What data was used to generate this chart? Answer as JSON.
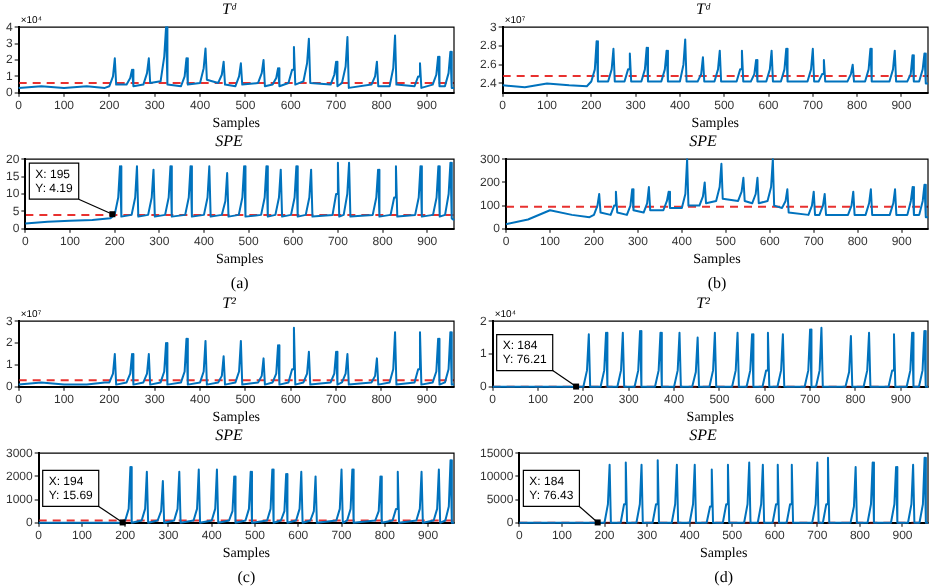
{
  "chart_data": [
    {
      "type": "line",
      "title": "Tᵈ",
      "xlabel": "Samples",
      "annotations": [
        "×10⁴"
      ],
      "xlim": [
        0,
        960
      ],
      "xticks": [
        0,
        100,
        200,
        300,
        400,
        500,
        600,
        700,
        800,
        900
      ],
      "ylim": [
        0,
        4
      ],
      "yticks": [
        0,
        1,
        2,
        3,
        4
      ],
      "x": [
        0,
        50,
        100,
        150,
        190,
        200,
        208,
        212,
        215,
        238,
        246,
        250,
        253,
        275,
        283,
        287,
        290,
        313,
        321,
        325,
        328,
        358,
        366,
        370,
        373,
        400,
        408,
        412,
        415,
        440,
        448,
        452,
        455,
        478,
        486,
        490,
        493,
        528,
        536,
        540,
        543,
        560,
        568,
        572,
        575,
        595,
        603,
        607,
        610,
        628,
        636,
        640,
        643,
        688,
        696,
        700,
        703,
        713,
        721,
        725,
        728,
        778,
        786,
        790,
        793,
        818,
        826,
        830,
        833,
        873,
        881,
        885,
        888,
        913,
        921,
        925,
        928,
        940,
        948,
        952,
        955,
        960
      ],
      "series": [
        {
          "color": "#0072bd",
          "values": [
            0.3,
            0.4,
            0.3,
            0.4,
            0.3,
            0.4,
            1.0,
            2.1,
            0.5,
            0.5,
            0.9,
            1.4,
            0.4,
            0.5,
            1.2,
            2.1,
            0.6,
            0.7,
            2.2,
            4.0,
            0.5,
            0.4,
            1.0,
            2.1,
            0.5,
            0.6,
            1.5,
            2.7,
            0.8,
            0.6,
            1.1,
            1.9,
            0.5,
            0.4,
            1.0,
            1.8,
            0.5,
            0.6,
            1.2,
            2.0,
            0.4,
            0.5,
            0.9,
            1.5,
            0.4,
            0.6,
            1.4,
            2.8,
            0.5,
            0.7,
            1.8,
            3.3,
            0.6,
            0.5,
            1.1,
            1.9,
            0.4,
            0.6,
            1.6,
            3.4,
            0.3,
            0.5,
            1.0,
            1.9,
            0.4,
            0.4,
            1.5,
            3.5,
            0.5,
            0.4,
            1.0,
            1.8,
            0.3,
            0.5,
            1.1,
            2.2,
            0.4,
            0.4,
            1.2,
            2.5,
            0.3,
            0.3
          ]
        }
      ],
      "ref_lines": [
        {
          "axis": "y",
          "value": 0.6,
          "color": "#e8312f",
          "line_style": "dashed"
        }
      ]
    },
    {
      "type": "line",
      "title": "SPE",
      "xlabel": "Samples",
      "annotations": [
        {
          "text": "X: 195\nY: 4.19",
          "x": 195,
          "y": 4.19
        },
        "(a)"
      ],
      "xlim": [
        0,
        960
      ],
      "xticks": [
        0,
        100,
        200,
        300,
        400,
        500,
        600,
        700,
        800,
        900
      ],
      "ylim": [
        0,
        20
      ],
      "yticks": [
        0,
        5,
        10,
        15,
        20
      ],
      "x": [
        0,
        50,
        100,
        150,
        190,
        200,
        208,
        212,
        215,
        238,
        246,
        250,
        253,
        275,
        283,
        287,
        290,
        313,
        321,
        325,
        328,
        358,
        366,
        370,
        373,
        400,
        408,
        412,
        415,
        440,
        448,
        452,
        455,
        478,
        486,
        490,
        493,
        528,
        536,
        540,
        543,
        560,
        568,
        572,
        575,
        595,
        603,
        607,
        610,
        628,
        636,
        640,
        643,
        688,
        696,
        700,
        703,
        713,
        721,
        725,
        728,
        778,
        786,
        790,
        793,
        818,
        826,
        830,
        833,
        873,
        881,
        885,
        888,
        913,
        921,
        925,
        928,
        940,
        948,
        952,
        955,
        960
      ],
      "series": [
        {
          "color": "#0072bd",
          "values": [
            1.5,
            2,
            2.3,
            2.5,
            3,
            4,
            9,
            18,
            3.5,
            4,
            9,
            18,
            3.5,
            4,
            9,
            17,
            3.5,
            4,
            9,
            18,
            3.5,
            4,
            9,
            18,
            3.5,
            4,
            9,
            18,
            3.5,
            4,
            8,
            16,
            3.5,
            4,
            9,
            18,
            3.5,
            4,
            9,
            18,
            3.5,
            4,
            9,
            17,
            3.5,
            4,
            9,
            18,
            3.5,
            4,
            9,
            17,
            3.5,
            4,
            10,
            19,
            3.5,
            4,
            10,
            19,
            3.5,
            4,
            9,
            17,
            3.5,
            4,
            9,
            18,
            3.5,
            4,
            9,
            18,
            3.5,
            4,
            9,
            18,
            3.5,
            4,
            10,
            19,
            3,
            2.5
          ]
        }
      ],
      "ref_lines": [
        {
          "axis": "y",
          "value": 4,
          "color": "#e8312f",
          "line_style": "dashed"
        }
      ]
    },
    {
      "type": "line",
      "title": "Tᵈ",
      "xlabel": "Samples",
      "annotations": [
        "×10⁷"
      ],
      "xlim": [
        0,
        960
      ],
      "xticks": [
        0,
        100,
        200,
        300,
        400,
        500,
        600,
        700,
        800,
        900
      ],
      "ylim": [
        2.3,
        3
      ],
      "yticks": [
        2.4,
        2.6,
        2.8,
        3
      ],
      "x": [
        0,
        50,
        100,
        150,
        190,
        200,
        208,
        212,
        215,
        238,
        246,
        250,
        253,
        275,
        283,
        287,
        290,
        313,
        321,
        325,
        328,
        358,
        366,
        370,
        373,
        400,
        408,
        412,
        415,
        440,
        448,
        452,
        455,
        478,
        486,
        490,
        493,
        528,
        536,
        540,
        543,
        560,
        568,
        572,
        575,
        595,
        603,
        607,
        610,
        628,
        636,
        640,
        643,
        688,
        696,
        700,
        703,
        713,
        721,
        725,
        728,
        778,
        786,
        790,
        793,
        818,
        826,
        830,
        833,
        873,
        881,
        885,
        888,
        913,
        921,
        925,
        928,
        940,
        948,
        952,
        955,
        960
      ],
      "series": [
        {
          "color": "#0072bd",
          "values": [
            2.38,
            2.36,
            2.4,
            2.38,
            2.37,
            2.42,
            2.55,
            2.85,
            2.42,
            2.42,
            2.55,
            2.77,
            2.42,
            2.42,
            2.55,
            2.72,
            2.42,
            2.42,
            2.55,
            2.78,
            2.42,
            2.42,
            2.55,
            2.75,
            2.42,
            2.42,
            2.6,
            2.87,
            2.42,
            2.42,
            2.5,
            2.68,
            2.42,
            2.42,
            2.55,
            2.75,
            2.42,
            2.42,
            2.55,
            2.75,
            2.42,
            2.42,
            2.5,
            2.65,
            2.42,
            2.42,
            2.55,
            2.75,
            2.42,
            2.42,
            2.55,
            2.77,
            2.42,
            2.42,
            2.55,
            2.77,
            2.42,
            2.42,
            2.5,
            2.65,
            2.42,
            2.42,
            2.5,
            2.6,
            2.42,
            2.42,
            2.55,
            2.77,
            2.42,
            2.42,
            2.55,
            2.75,
            2.42,
            2.42,
            2.5,
            2.7,
            2.42,
            2.42,
            2.55,
            2.72,
            2.4,
            2.4
          ]
        }
      ],
      "ref_lines": [
        {
          "axis": "y",
          "value": 2.48,
          "color": "#e8312f",
          "line_style": "dashed"
        }
      ]
    },
    {
      "type": "line",
      "title": "SPE",
      "xlabel": "Samples",
      "annotations": [
        "(b)"
      ],
      "xlim": [
        0,
        960
      ],
      "xticks": [
        0,
        100,
        200,
        300,
        400,
        500,
        600,
        700,
        800,
        900
      ],
      "ylim": [
        0,
        300
      ],
      "yticks": [
        0,
        100,
        200,
        300
      ],
      "x": [
        0,
        50,
        100,
        150,
        190,
        200,
        208,
        212,
        215,
        238,
        246,
        250,
        253,
        275,
        283,
        287,
        290,
        313,
        321,
        325,
        328,
        358,
        366,
        370,
        373,
        400,
        408,
        412,
        415,
        440,
        448,
        452,
        455,
        478,
        486,
        490,
        493,
        528,
        536,
        540,
        543,
        560,
        568,
        572,
        575,
        595,
        603,
        607,
        610,
        628,
        636,
        640,
        643,
        688,
        696,
        700,
        703,
        713,
        721,
        725,
        728,
        778,
        786,
        790,
        793,
        818,
        826,
        830,
        833,
        873,
        881,
        885,
        888,
        913,
        921,
        925,
        928,
        940,
        948,
        952,
        955,
        960
      ],
      "series": [
        {
          "color": "#0072bd",
          "values": [
            20,
            40,
            80,
            60,
            50,
            60,
            100,
            150,
            70,
            60,
            100,
            160,
            70,
            60,
            100,
            170,
            80,
            70,
            110,
            180,
            80,
            80,
            120,
            160,
            90,
            90,
            150,
            300,
            100,
            100,
            140,
            200,
            110,
            120,
            180,
            280,
            130,
            120,
            160,
            220,
            120,
            110,
            150,
            220,
            110,
            120,
            180,
            300,
            100,
            90,
            120,
            170,
            70,
            60,
            100,
            160,
            60,
            60,
            100,
            150,
            60,
            60,
            100,
            160,
            60,
            60,
            110,
            170,
            60,
            60,
            110,
            170,
            60,
            60,
            120,
            180,
            60,
            60,
            120,
            190,
            50,
            50
          ]
        }
      ],
      "ref_lines": [
        {
          "axis": "y",
          "value": 95,
          "color": "#e8312f",
          "line_style": "dashed"
        }
      ]
    },
    {
      "type": "line",
      "title": "T²",
      "xlabel": "Samples",
      "annotations": [
        "×10⁷"
      ],
      "xlim": [
        0,
        960
      ],
      "xticks": [
        0,
        100,
        200,
        300,
        400,
        500,
        600,
        700,
        800,
        900
      ],
      "ylim": [
        0,
        3
      ],
      "yticks": [
        0,
        1,
        2,
        3
      ],
      "x": [
        0,
        50,
        100,
        150,
        190,
        200,
        208,
        212,
        215,
        238,
        246,
        250,
        253,
        275,
        283,
        287,
        290,
        313,
        321,
        325,
        328,
        358,
        366,
        370,
        373,
        400,
        408,
        412,
        415,
        440,
        448,
        452,
        455,
        478,
        486,
        490,
        493,
        528,
        536,
        540,
        543,
        560,
        568,
        572,
        575,
        595,
        603,
        607,
        610,
        628,
        636,
        640,
        643,
        688,
        696,
        700,
        703,
        713,
        721,
        725,
        728,
        778,
        786,
        790,
        793,
        818,
        826,
        830,
        833,
        873,
        881,
        885,
        888,
        913,
        921,
        925,
        928,
        940,
        948,
        952,
        955,
        960
      ],
      "series": [
        {
          "color": "#0072bd",
          "values": [
            0.1,
            0.2,
            0.1,
            0.1,
            0.2,
            0.2,
            0.6,
            1.5,
            0.1,
            0.2,
            0.6,
            1.5,
            0.1,
            0.2,
            0.6,
            1.5,
            0.1,
            0.2,
            0.7,
            2.0,
            0.1,
            0.2,
            0.7,
            2.2,
            0.1,
            0.2,
            0.7,
            2.1,
            0.1,
            0.2,
            0.5,
            1.4,
            0.1,
            0.2,
            0.7,
            2.1,
            0.1,
            0.2,
            0.5,
            1.3,
            0.1,
            0.2,
            0.6,
            1.9,
            0.1,
            0.2,
            0.8,
            2.7,
            0.1,
            0.2,
            0.6,
            1.6,
            0.1,
            0.2,
            0.6,
            1.6,
            0.1,
            0.2,
            0.6,
            1.5,
            0.1,
            0.2,
            0.5,
            1.3,
            0.1,
            0.2,
            0.8,
            2.5,
            0.1,
            0.2,
            0.8,
            2.5,
            0.1,
            0.2,
            0.7,
            2.2,
            0.1,
            0.2,
            0.8,
            2.5,
            0.1,
            0.1
          ]
        }
      ],
      "ref_lines": [
        {
          "axis": "y",
          "value": 0.3,
          "color": "#e8312f",
          "line_style": "dashed"
        }
      ]
    },
    {
      "type": "line",
      "title": "SPE",
      "xlabel": "Samples",
      "annotations": [
        {
          "text": "X: 194\nY: 15.69",
          "x": 194,
          "y": 15.69
        },
        "(c)"
      ],
      "xlim": [
        0,
        960
      ],
      "xticks": [
        0,
        100,
        200,
        300,
        400,
        500,
        600,
        700,
        800,
        900
      ],
      "ylim": [
        0,
        3000
      ],
      "yticks": [
        0,
        1000,
        2000,
        3000
      ],
      "x": [
        0,
        50,
        100,
        150,
        190,
        200,
        208,
        212,
        215,
        238,
        246,
        250,
        253,
        275,
        283,
        287,
        290,
        313,
        321,
        325,
        328,
        358,
        366,
        370,
        373,
        400,
        408,
        412,
        415,
        440,
        448,
        452,
        455,
        478,
        486,
        490,
        493,
        528,
        536,
        540,
        543,
        560,
        568,
        572,
        575,
        595,
        603,
        607,
        610,
        628,
        636,
        640,
        643,
        688,
        696,
        700,
        703,
        713,
        721,
        725,
        728,
        778,
        786,
        790,
        793,
        818,
        826,
        830,
        833,
        873,
        881,
        885,
        888,
        913,
        921,
        925,
        928,
        940,
        948,
        952,
        955,
        960
      ],
      "series": [
        {
          "color": "#0072bd",
          "values": [
            0,
            0,
            0,
            0,
            0,
            100,
            600,
            2400,
            0,
            100,
            600,
            2200,
            0,
            100,
            500,
            1800,
            0,
            100,
            600,
            2200,
            0,
            100,
            600,
            2300,
            0,
            100,
            600,
            2300,
            0,
            100,
            500,
            2000,
            0,
            100,
            600,
            2200,
            0,
            100,
            600,
            2300,
            0,
            100,
            500,
            2100,
            0,
            100,
            600,
            2200,
            0,
            100,
            500,
            2000,
            0,
            100,
            600,
            2300,
            0,
            100,
            600,
            2300,
            0,
            100,
            500,
            2000,
            0,
            100,
            600,
            2200,
            0,
            100,
            600,
            2200,
            0,
            100,
            600,
            2300,
            0,
            100,
            700,
            2700,
            0,
            0
          ]
        }
      ],
      "ref_lines": [
        {
          "axis": "y",
          "value": 100,
          "color": "#e8312f",
          "line_style": "dashed"
        }
      ]
    },
    {
      "type": "line",
      "title": "T²",
      "xlabel": "Samples",
      "annotations": [
        "×10⁴",
        {
          "text": "X: 184\nY: 76.21",
          "x": 184,
          "y": 0.007621
        }
      ],
      "xlim": [
        0,
        960
      ],
      "xticks": [
        0,
        100,
        200,
        300,
        400,
        500,
        600,
        700,
        800,
        900
      ],
      "ylim": [
        0,
        2
      ],
      "yticks": [
        0,
        1,
        2
      ],
      "x": [
        0,
        50,
        100,
        150,
        190,
        200,
        208,
        212,
        215,
        238,
        246,
        250,
        253,
        275,
        283,
        287,
        290,
        313,
        321,
        325,
        328,
        358,
        366,
        370,
        373,
        400,
        408,
        412,
        415,
        440,
        448,
        452,
        455,
        478,
        486,
        490,
        493,
        528,
        536,
        540,
        543,
        560,
        568,
        572,
        575,
        595,
        603,
        607,
        610,
        628,
        636,
        640,
        643,
        688,
        696,
        700,
        703,
        713,
        721,
        725,
        728,
        778,
        786,
        790,
        793,
        818,
        826,
        830,
        833,
        873,
        881,
        885,
        888,
        913,
        921,
        925,
        928,
        940,
        948,
        952,
        955,
        960
      ],
      "series": [
        {
          "color": "#0072bd",
          "values": [
            0,
            0,
            0,
            0,
            0,
            0,
            0.5,
            1.6,
            0,
            0,
            0.5,
            1.65,
            0,
            0,
            0.5,
            1.65,
            0,
            0,
            0.5,
            1.7,
            0,
            0,
            0.5,
            1.65,
            0,
            0,
            0.5,
            1.65,
            0,
            0,
            0.45,
            1.5,
            0,
            0,
            0.5,
            1.65,
            0,
            0,
            0.5,
            1.65,
            0,
            0,
            0.5,
            1.6,
            0,
            0,
            0.5,
            1.65,
            0,
            0,
            0.5,
            1.6,
            0,
            0,
            0.5,
            1.75,
            0,
            0,
            0.5,
            1.8,
            0,
            0,
            0.45,
            1.55,
            0,
            0,
            0.5,
            1.65,
            0,
            0,
            0.5,
            1.6,
            0,
            0,
            0.5,
            1.65,
            0,
            0,
            0.5,
            1.7,
            0,
            0
          ]
        }
      ],
      "ref_lines": [
        {
          "axis": "y",
          "value": 0,
          "color": "#e8312f",
          "line_style": "dashed"
        }
      ]
    },
    {
      "type": "line",
      "title": "SPE",
      "xlabel": "Samples",
      "annotations": [
        {
          "text": "X: 184\nY: 76.43",
          "x": 184,
          "y": 76.43
        },
        "(d)"
      ],
      "xlim": [
        0,
        960
      ],
      "xticks": [
        0,
        100,
        200,
        300,
        400,
        500,
        600,
        700,
        800,
        900
      ],
      "ylim": [
        0,
        15000
      ],
      "yticks": [
        0,
        5000,
        10000,
        15000
      ],
      "x": [
        0,
        50,
        100,
        150,
        190,
        200,
        208,
        212,
        215,
        238,
        246,
        250,
        253,
        275,
        283,
        287,
        290,
        313,
        321,
        325,
        328,
        358,
        366,
        370,
        373,
        400,
        408,
        412,
        415,
        440,
        448,
        452,
        455,
        478,
        486,
        490,
        493,
        528,
        536,
        540,
        543,
        560,
        568,
        572,
        575,
        595,
        603,
        607,
        610,
        628,
        636,
        640,
        643,
        688,
        696,
        700,
        703,
        713,
        721,
        725,
        728,
        778,
        786,
        790,
        793,
        818,
        826,
        830,
        833,
        873,
        881,
        885,
        888,
        913,
        921,
        925,
        928,
        940,
        948,
        952,
        955,
        960
      ],
      "series": [
        {
          "color": "#0072bd",
          "values": [
            0,
            0,
            0,
            0,
            0,
            0,
            4000,
            12500,
            0,
            0,
            4000,
            13000,
            0,
            0,
            4000,
            12500,
            0,
            0,
            4000,
            13500,
            0,
            0,
            4000,
            12500,
            0,
            0,
            4000,
            12500,
            0,
            0,
            3500,
            11500,
            0,
            0,
            4000,
            12500,
            0,
            0,
            4000,
            13000,
            0,
            0,
            4000,
            12500,
            0,
            0,
            4000,
            12500,
            0,
            0,
            4000,
            12500,
            0,
            0,
            4000,
            13000,
            0,
            0,
            4000,
            14000,
            0,
            0,
            3500,
            12000,
            0,
            0,
            4000,
            13000,
            0,
            0,
            4000,
            12000,
            0,
            0,
            4000,
            12500,
            0,
            0,
            4000,
            14000,
            0,
            0
          ]
        }
      ],
      "ref_lines": [
        {
          "axis": "y",
          "value": 0,
          "color": "#e8312f",
          "line_style": "dashed"
        }
      ]
    }
  ]
}
